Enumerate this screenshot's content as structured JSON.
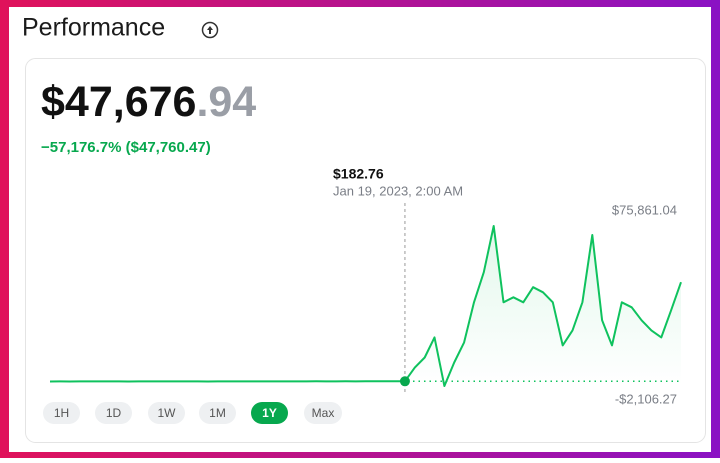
{
  "header": {
    "title": "Performance"
  },
  "balance": {
    "whole": "$47,676",
    "cents": ".94"
  },
  "change": "−57,176.7% ($47,760.47)",
  "chart_data": {
    "type": "line",
    "series": [
      {
        "color": "#0fc25e",
        "values": [
          110,
          120,
          105,
          130,
          115,
          125,
          140,
          120,
          110,
          135,
          125,
          115,
          130,
          120,
          145,
          125,
          110,
          120,
          135,
          150,
          140,
          125,
          130,
          145,
          155,
          140,
          150,
          160,
          145,
          155,
          165,
          150,
          160,
          170,
          165,
          175,
          182.76,
          6880,
          11780,
          21560,
          -2106.27,
          9340,
          19130,
          38690,
          53360,
          75861.04,
          38690,
          41120,
          38690,
          46030,
          43570,
          38690,
          17670,
          25000,
          38690,
          71460,
          29890,
          17670,
          38690,
          36230,
          29890,
          25000,
          21560,
          34780,
          48480
        ]
      }
    ],
    "ylim": [
      -2106.27,
      75861.04
    ],
    "yticks": [
      {
        "value": 75861.04,
        "label": "$75,861.04"
      },
      {
        "value": -2106.27,
        "label": "-$2,106.27"
      }
    ],
    "tooltip": {
      "value": 182.76,
      "label": "$182.76",
      "date": "Jan 19, 2023, 2:00 AM"
    }
  },
  "ranges": [
    "1H",
    "1D",
    "1W",
    "1M",
    "1Y",
    "Max"
  ],
  "active_range": "1Y"
}
